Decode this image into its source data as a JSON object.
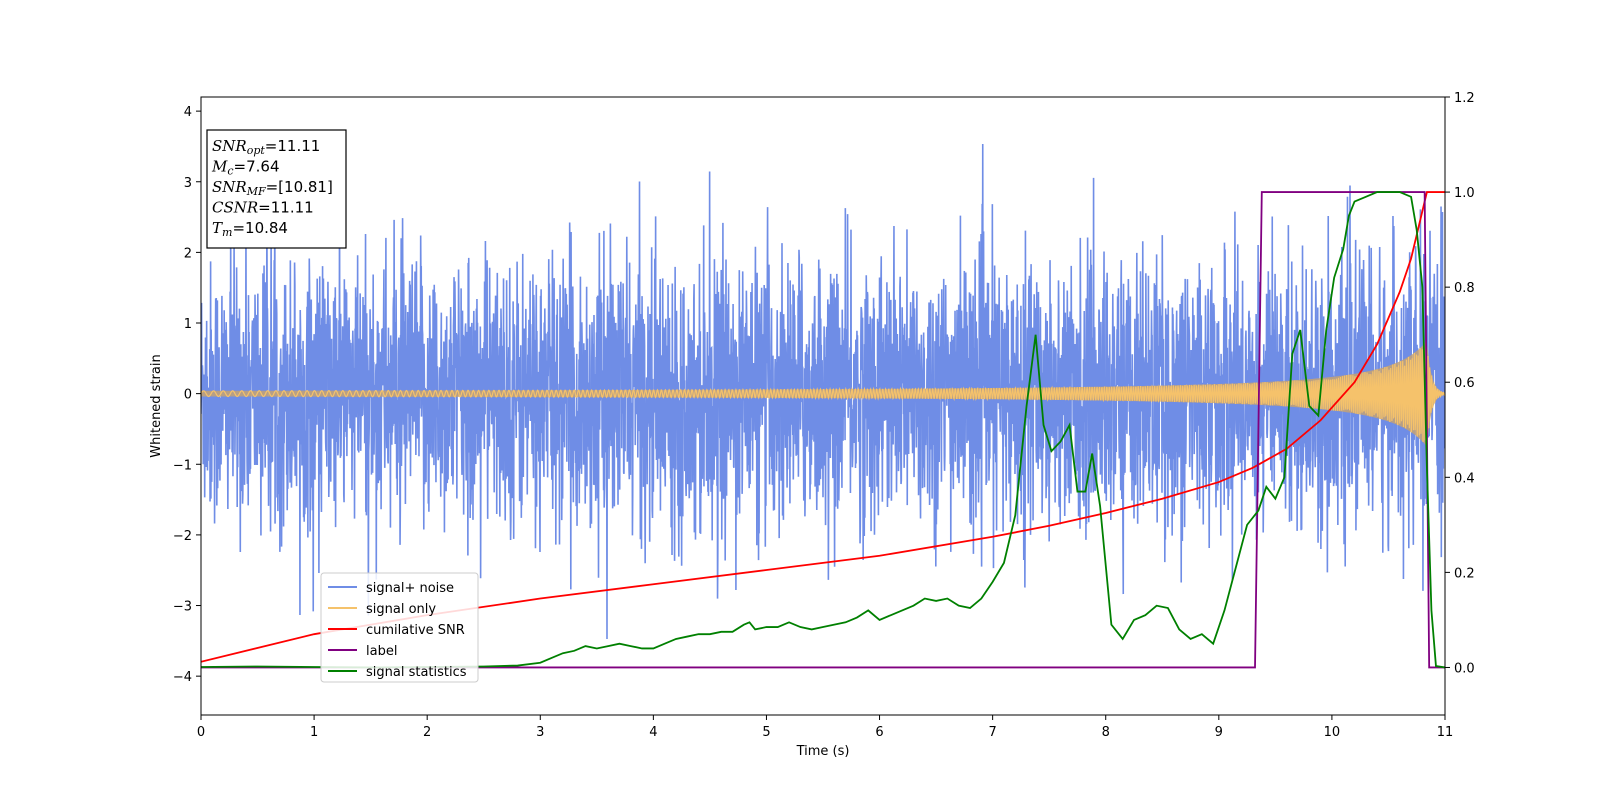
{
  "chart_data": {
    "type": "line",
    "title": "",
    "xlabel": "Time (s)",
    "ylabel": "Whitened strain",
    "y2label": "",
    "xlim": [
      0,
      11
    ],
    "ylim": [
      -4.55,
      4.2
    ],
    "y2lim": [
      -0.1,
      1.2
    ],
    "xticks": [
      "0",
      "1",
      "2",
      "3",
      "4",
      "5",
      "6",
      "7",
      "8",
      "9",
      "10",
      "11"
    ],
    "yticks": [
      "−4",
      "−3",
      "−2",
      "−1",
      "0",
      "1",
      "2",
      "3",
      "4"
    ],
    "yticks_values": [
      -4,
      -3,
      -2,
      -1,
      0,
      1,
      2,
      3,
      4
    ],
    "y2ticks": [
      "0.0",
      "0.2",
      "0.4",
      "0.6",
      "0.8",
      "1.0",
      "1.2"
    ],
    "y2ticks_values": [
      0.0,
      0.2,
      0.4,
      0.6,
      0.8,
      1.0,
      1.2
    ],
    "grid": false,
    "legend_placement": "lower-left",
    "annotation": {
      "lines": [
        {
          "sym": "SNR",
          "sub": "opt",
          "value": "=11.11"
        },
        {
          "sym": "M",
          "sub": "c",
          "value": "=7.64"
        },
        {
          "sym": "SNR",
          "sub": "MF",
          "value": "=[10.81]"
        },
        {
          "sym": "CSNR",
          "sub": "",
          "value": "=11.11"
        },
        {
          "sym": "T",
          "sub": "m",
          "value": "=10.84"
        }
      ]
    },
    "series": [
      {
        "name": "signal+ noise",
        "color": "#6f8de6",
        "axis": "left",
        "kind": "noise",
        "t_range": [
          0,
          11
        ],
        "typical_amplitude": 2.2,
        "min": -4.18,
        "max": 3.82
      },
      {
        "name": "signal only",
        "color": "#f5c26b",
        "axis": "left",
        "kind": "chirp",
        "t_range": [
          0,
          11
        ],
        "amplitude_start": 0.04,
        "amplitude_peak": 0.75,
        "t_merger": 10.84
      },
      {
        "name": "cumilative SNR",
        "color": "#ff0000",
        "axis": "right",
        "x": [
          0,
          1,
          2,
          3,
          4,
          5,
          6,
          7,
          7.5,
          8,
          8.5,
          9,
          9.3,
          9.6,
          9.9,
          10.2,
          10.4,
          10.6,
          10.7,
          10.8,
          10.84,
          11
        ],
        "y": [
          0.012,
          0.07,
          0.11,
          0.145,
          0.175,
          0.205,
          0.235,
          0.275,
          0.298,
          0.325,
          0.355,
          0.39,
          0.42,
          0.46,
          0.52,
          0.6,
          0.68,
          0.79,
          0.86,
          0.96,
          1.0,
          1.0
        ]
      },
      {
        "name": "label",
        "color": "#800080",
        "axis": "right",
        "x": [
          0,
          9.32,
          9.38,
          10.82,
          10.86,
          11
        ],
        "y": [
          0,
          0,
          1,
          1,
          0,
          0
        ]
      },
      {
        "name": "signal statistics",
        "color": "#008000",
        "axis": "right",
        "x": [
          0,
          0.5,
          1,
          1.5,
          2,
          2.5,
          2.8,
          3.0,
          3.1,
          3.2,
          3.3,
          3.4,
          3.5,
          3.6,
          3.7,
          3.8,
          3.9,
          4.0,
          4.1,
          4.2,
          4.3,
          4.4,
          4.5,
          4.6,
          4.7,
          4.8,
          4.85,
          4.9,
          5.0,
          5.1,
          5.2,
          5.3,
          5.4,
          5.5,
          5.6,
          5.7,
          5.8,
          5.9,
          6.0,
          6.1,
          6.2,
          6.3,
          6.4,
          6.5,
          6.6,
          6.7,
          6.8,
          6.9,
          7.0,
          7.1,
          7.2,
          7.3,
          7.38,
          7.45,
          7.52,
          7.6,
          7.68,
          7.75,
          7.82,
          7.88,
          7.95,
          8.05,
          8.15,
          8.25,
          8.35,
          8.45,
          8.55,
          8.65,
          8.75,
          8.85,
          8.95,
          9.05,
          9.15,
          9.25,
          9.35,
          9.42,
          9.5,
          9.58,
          9.65,
          9.72,
          9.8,
          9.88,
          9.95,
          10.02,
          10.1,
          10.15,
          10.2,
          10.3,
          10.4,
          10.5,
          10.6,
          10.7,
          10.75,
          10.8,
          10.84,
          10.88,
          10.92,
          11
        ],
        "y": [
          0.001,
          0.002,
          0.001,
          0.0,
          0.001,
          0.002,
          0.004,
          0.01,
          0.02,
          0.03,
          0.035,
          0.045,
          0.04,
          0.045,
          0.05,
          0.045,
          0.04,
          0.04,
          0.05,
          0.06,
          0.065,
          0.07,
          0.07,
          0.075,
          0.075,
          0.09,
          0.095,
          0.08,
          0.085,
          0.085,
          0.095,
          0.085,
          0.08,
          0.085,
          0.09,
          0.095,
          0.105,
          0.12,
          0.1,
          0.11,
          0.12,
          0.13,
          0.145,
          0.14,
          0.145,
          0.13,
          0.125,
          0.145,
          0.18,
          0.22,
          0.32,
          0.55,
          0.7,
          0.51,
          0.455,
          0.475,
          0.51,
          0.37,
          0.37,
          0.45,
          0.34,
          0.09,
          0.06,
          0.1,
          0.11,
          0.13,
          0.125,
          0.08,
          0.06,
          0.07,
          0.05,
          0.12,
          0.21,
          0.3,
          0.33,
          0.38,
          0.355,
          0.4,
          0.66,
          0.71,
          0.55,
          0.53,
          0.71,
          0.82,
          0.88,
          0.95,
          0.98,
          0.99,
          1.0,
          1.0,
          1.0,
          0.99,
          0.92,
          0.8,
          0.42,
          0.12,
          0.003,
          0.0
        ]
      }
    ]
  }
}
